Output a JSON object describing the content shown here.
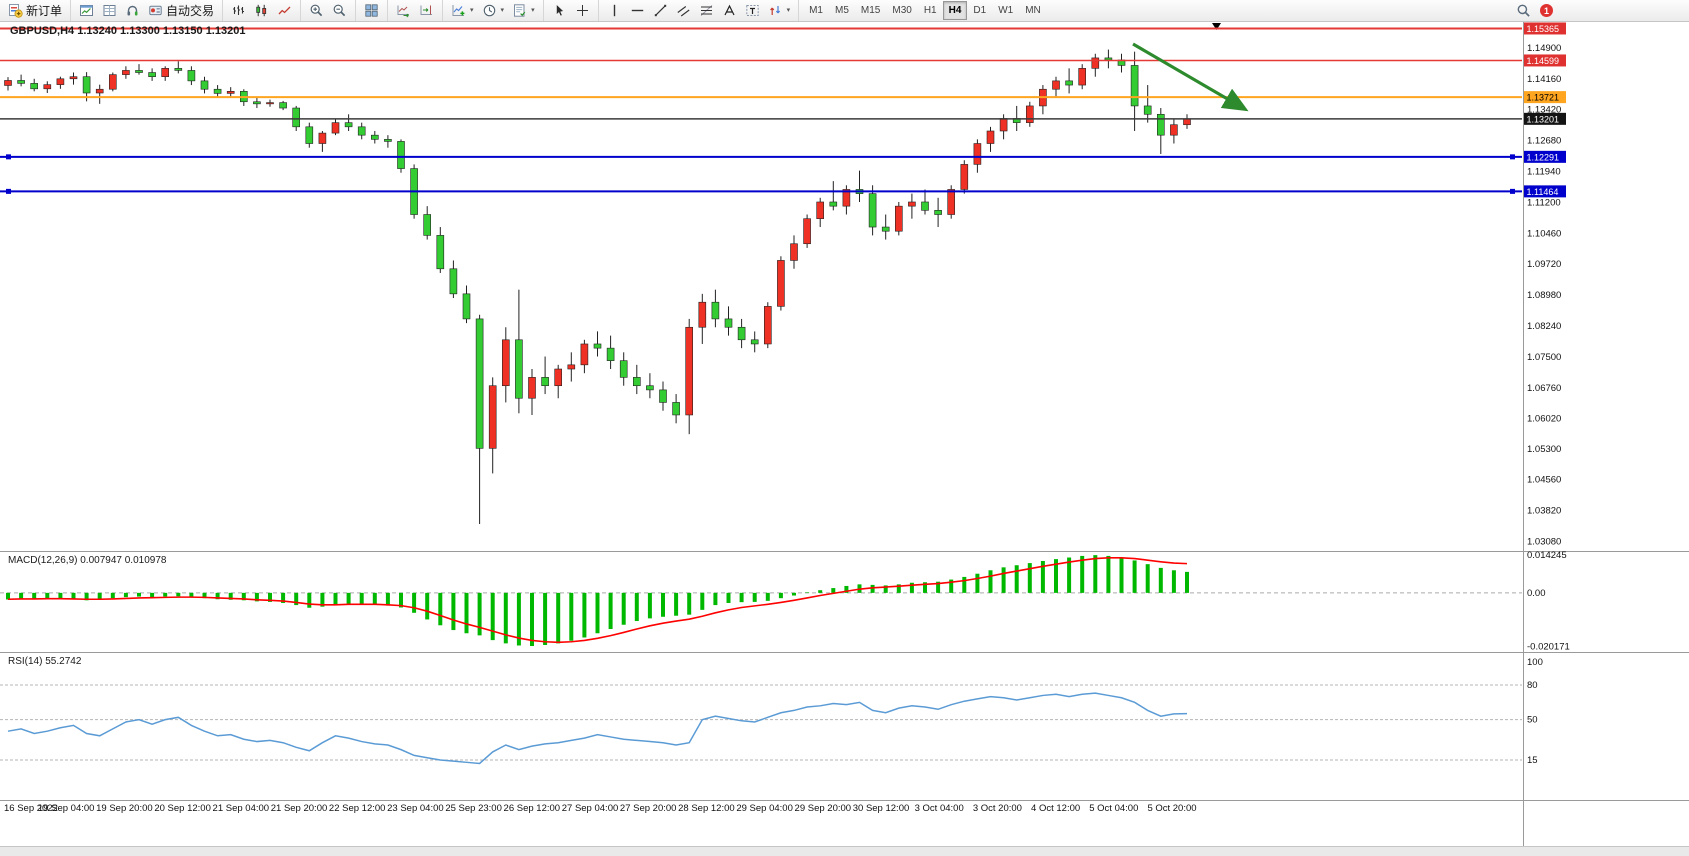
{
  "toolbar": {
    "groups": [
      {
        "items": [
          {
            "name": "new-order-button",
            "icon": "new-order",
            "label": "新订单"
          }
        ]
      },
      {
        "items": [
          {
            "name": "new-chart-button",
            "icon": "new-chart"
          },
          {
            "name": "data-window-button",
            "icon": "data-window"
          },
          {
            "name": "community-button",
            "icon": "community"
          },
          {
            "name": "autotrading-button",
            "icon": "autotrading",
            "label": "自动交易"
          }
        ]
      },
      {
        "items": [
          {
            "name": "bar-chart-type-button",
            "icon": "bars"
          },
          {
            "name": "candlestick-chart-type-button",
            "icon": "candles"
          },
          {
            "name": "line-chart-type-button",
            "icon": "line-chart"
          }
        ]
      },
      {
        "items": [
          {
            "name": "zoom-in-button",
            "icon": "zoom-in"
          },
          {
            "name": "zoom-out-button",
            "icon": "zoom-out"
          }
        ]
      },
      {
        "items": [
          {
            "name": "tile-windows-button",
            "icon": "tile"
          }
        ]
      },
      {
        "items": [
          {
            "name": "auto-scroll-button",
            "icon": "autoscroll"
          },
          {
            "name": "chart-shift-button",
            "icon": "chartshift"
          }
        ]
      },
      {
        "items": [
          {
            "name": "indicators-button",
            "icon": "indicators",
            "caret": true
          },
          {
            "name": "periods-button",
            "icon": "clock",
            "caret": true
          },
          {
            "name": "templates-button",
            "icon": "template",
            "caret": true
          }
        ]
      },
      {
        "items": [
          {
            "name": "cursor-button",
            "icon": "cursor"
          },
          {
            "name": "crosshair-button",
            "icon": "crosshair"
          }
        ]
      },
      {
        "items": [
          {
            "name": "vertical-line-button",
            "icon": "vline"
          },
          {
            "name": "horizontal-line-button",
            "icon": "hline"
          },
          {
            "name": "trendline-button",
            "icon": "trendline"
          },
          {
            "name": "equidistant-channel-button",
            "icon": "channel"
          },
          {
            "name": "fibonacci-button",
            "icon": "fibo"
          },
          {
            "name": "text-button",
            "icon": "text"
          },
          {
            "name": "text-label-button",
            "icon": "label"
          },
          {
            "name": "arrows-button",
            "icon": "arrows",
            "caret": true
          }
        ]
      }
    ],
    "timeframes": [
      "M1",
      "M5",
      "M15",
      "M30",
      "H1",
      "H4",
      "D1",
      "W1",
      "MN"
    ],
    "active_timeframe": "H4",
    "notification_badge": "1"
  },
  "chart": {
    "symbol_header": "GBPUSD,H4 1.13240 1.13300 1.13150 1.13201",
    "price_axis": [
      "1.14900",
      "1.14160",
      "1.13420",
      "1.12680",
      "1.11940",
      "1.11200",
      "1.10460",
      "1.09720",
      "1.08980",
      "1.08240",
      "1.07500",
      "1.06760",
      "1.06020",
      "1.05300",
      "1.04560",
      "1.03820",
      "1.03080"
    ],
    "time_axis": [
      "16 Sep 2022",
      "19 Sep 04:00",
      "19 Sep 20:00",
      "20 Sep 12:00",
      "21 Sep 04:00",
      "21 Sep 20:00",
      "22 Sep 12:00",
      "23 Sep 04:00",
      "25 Sep 23:00",
      "26 Sep 12:00",
      "27 Sep 04:00",
      "27 Sep 20:00",
      "28 Sep 12:00",
      "29 Sep 04:00",
      "29 Sep 20:00",
      "30 Sep 12:00",
      "3 Oct 04:00",
      "3 Oct 20:00",
      "4 Oct 12:00",
      "5 Oct 04:00",
      "5 Oct 20:00"
    ],
    "current_price": "1.13201",
    "levels": [
      {
        "price": 1.15365,
        "label": "1.15365",
        "line_color": "#e53935",
        "badge_bg": "#e03131",
        "badge_fg": "#ffffff",
        "width": 2,
        "role": "resistance-line"
      },
      {
        "price": 1.14599,
        "label": "1.14599",
        "line_color": "#e53935",
        "badge_bg": "#e03131",
        "badge_fg": "#ffffff",
        "width": 1.5,
        "role": "resistance-line"
      },
      {
        "price": 1.13721,
        "label": "1.13721",
        "line_color": "#ffa51f",
        "badge_bg": "#ffa51f",
        "badge_fg": "#000000",
        "width": 2,
        "role": "pivot-line"
      },
      {
        "price": 1.13201,
        "label": "1.13201",
        "line_color": "#3a3a3a",
        "badge_bg": "#141414",
        "badge_fg": "#ffffff",
        "width": 1.5,
        "role": "current-price-line"
      },
      {
        "price": 1.12291,
        "label": "1.12291",
        "line_color": "#0000cc",
        "badge_bg": "#0000cc",
        "badge_fg": "#ffffff",
        "width": 2,
        "handles": true,
        "role": "support-line"
      },
      {
        "price": 1.11464,
        "label": "1.11464",
        "line_color": "#0000cc",
        "badge_bg": "#0000cc",
        "badge_fg": "#ffffff",
        "width": 2,
        "handles": true,
        "role": "support-line"
      }
    ],
    "trend_arrow": {
      "color": "#2d8a2d"
    }
  },
  "indicators": {
    "macd_label": "MACD(12,26,9) 0.007947 0.010978",
    "rsi_label": "RSI(14) 55.2742",
    "macd_axis": [
      "0.014245",
      "0.00",
      "-0.020171"
    ],
    "rsi_axis": [
      "100",
      "80",
      "50",
      "15"
    ]
  },
  "chart_data": [
    {
      "type": "candlestick",
      "symbol": "GBPUSD",
      "timeframe": "H4",
      "title": "GBPUSD,H4",
      "ylim": [
        1.029,
        1.1552
      ],
      "up_color": "#ee3124",
      "down_color": "#33cc33",
      "wick_color": "#222222",
      "ohlc": [
        [
          1.14,
          1.142,
          1.1388,
          1.1412
        ],
        [
          1.1412,
          1.1426,
          1.1398,
          1.1405
        ],
        [
          1.1405,
          1.1416,
          1.1386,
          1.1392
        ],
        [
          1.1392,
          1.141,
          1.1382,
          1.1402
        ],
        [
          1.1402,
          1.1421,
          1.1392,
          1.1416
        ],
        [
          1.1416,
          1.1431,
          1.1402,
          1.1421
        ],
        [
          1.1421,
          1.1432,
          1.1362,
          1.1382
        ],
        [
          1.1382,
          1.1402,
          1.1356,
          1.1391
        ],
        [
          1.1391,
          1.1431,
          1.1386,
          1.1426
        ],
        [
          1.1426,
          1.1446,
          1.1416,
          1.1436
        ],
        [
          1.1436,
          1.1451,
          1.1426,
          1.1431
        ],
        [
          1.1431,
          1.1441,
          1.1411,
          1.1421
        ],
        [
          1.1421,
          1.1446,
          1.1411,
          1.1441
        ],
        [
          1.1441,
          1.1458,
          1.1429,
          1.1436
        ],
        [
          1.1436,
          1.1446,
          1.1401,
          1.1411
        ],
        [
          1.1411,
          1.1421,
          1.1381,
          1.1391
        ],
        [
          1.1391,
          1.1401,
          1.1371,
          1.1381
        ],
        [
          1.1381,
          1.1396,
          1.1371,
          1.1386
        ],
        [
          1.1386,
          1.1391,
          1.1351,
          1.1361
        ],
        [
          1.1361,
          1.1371,
          1.1346,
          1.1356
        ],
        [
          1.1356,
          1.1366,
          1.1349,
          1.1359
        ],
        [
          1.1359,
          1.1363,
          1.1341,
          1.1346
        ],
        [
          1.1346,
          1.1351,
          1.1291,
          1.1301
        ],
        [
          1.1301,
          1.1311,
          1.1251,
          1.1261
        ],
        [
          1.1261,
          1.1291,
          1.1241,
          1.1286
        ],
        [
          1.1286,
          1.1321,
          1.1281,
          1.1311
        ],
        [
          1.1311,
          1.1331,
          1.1291,
          1.1301
        ],
        [
          1.1301,
          1.1311,
          1.1271,
          1.1281
        ],
        [
          1.1281,
          1.1291,
          1.1261,
          1.1271
        ],
        [
          1.1271,
          1.1281,
          1.1251,
          1.1266
        ],
        [
          1.1266,
          1.1271,
          1.1191,
          1.1201
        ],
        [
          1.1201,
          1.1211,
          1.1081,
          1.1091
        ],
        [
          1.1091,
          1.1111,
          1.1031,
          1.1041
        ],
        [
          1.1041,
          1.1061,
          1.0951,
          1.0961
        ],
        [
          1.0961,
          1.0981,
          1.0891,
          1.0901
        ],
        [
          1.0901,
          1.0921,
          1.0831,
          1.0841
        ],
        [
          1.0841,
          1.0851,
          1.035,
          1.0531
        ],
        [
          1.0531,
          1.0701,
          1.0471,
          1.0681
        ],
        [
          1.0681,
          1.0821,
          1.0641,
          1.0791
        ],
        [
          1.0791,
          1.0911,
          1.0615,
          1.0651
        ],
        [
          1.0651,
          1.0721,
          1.0611,
          1.0701
        ],
        [
          1.0701,
          1.0751,
          1.0661,
          1.0681
        ],
        [
          1.0681,
          1.0731,
          1.0651,
          1.0721
        ],
        [
          1.0721,
          1.0761,
          1.0691,
          1.0731
        ],
        [
          1.0731,
          1.0791,
          1.0711,
          1.0781
        ],
        [
          1.0781,
          1.0811,
          1.0751,
          1.0771
        ],
        [
          1.0771,
          1.0801,
          1.0721,
          1.0741
        ],
        [
          1.0741,
          1.0761,
          1.0681,
          1.0701
        ],
        [
          1.0701,
          1.0731,
          1.0661,
          1.0681
        ],
        [
          1.0681,
          1.0711,
          1.0651,
          1.0671
        ],
        [
          1.0671,
          1.0691,
          1.0621,
          1.0641
        ],
        [
          1.0641,
          1.0661,
          1.0591,
          1.0611
        ],
        [
          1.0611,
          1.0841,
          1.0565,
          1.0821
        ],
        [
          1.0821,
          1.0901,
          1.0781,
          1.0881
        ],
        [
          1.0881,
          1.0911,
          1.0821,
          1.0841
        ],
        [
          1.0841,
          1.0871,
          1.0801,
          1.0821
        ],
        [
          1.0821,
          1.0841,
          1.0771,
          1.0791
        ],
        [
          1.0791,
          1.0811,
          1.0761,
          1.0781
        ],
        [
          1.0781,
          1.0881,
          1.0771,
          1.0871
        ],
        [
          1.0871,
          1.0991,
          1.0861,
          1.0981
        ],
        [
          1.0981,
          1.1041,
          1.0961,
          1.1021
        ],
        [
          1.1021,
          1.1091,
          1.1011,
          1.1081
        ],
        [
          1.1081,
          1.1131,
          1.1061,
          1.1121
        ],
        [
          1.1121,
          1.1171,
          1.1101,
          1.1111
        ],
        [
          1.1111,
          1.1161,
          1.1091,
          1.1151
        ],
        [
          1.1151,
          1.1196,
          1.1121,
          1.1141
        ],
        [
          1.1141,
          1.1161,
          1.1041,
          1.1061
        ],
        [
          1.1061,
          1.1091,
          1.1031,
          1.1051
        ],
        [
          1.1051,
          1.1121,
          1.1041,
          1.1111
        ],
        [
          1.1111,
          1.1141,
          1.1081,
          1.1121
        ],
        [
          1.1121,
          1.1151,
          1.1091,
          1.1101
        ],
        [
          1.1101,
          1.1131,
          1.1061,
          1.1091
        ],
        [
          1.1091,
          1.1161,
          1.1081,
          1.1151
        ],
        [
          1.1151,
          1.1221,
          1.1141,
          1.1211
        ],
        [
          1.1211,
          1.1271,
          1.1191,
          1.1261
        ],
        [
          1.1261,
          1.1301,
          1.1241,
          1.1291
        ],
        [
          1.1291,
          1.1331,
          1.1271,
          1.1321
        ],
        [
          1.1321,
          1.1351,
          1.1291,
          1.1311
        ],
        [
          1.1311,
          1.1361,
          1.1301,
          1.1351
        ],
        [
          1.1351,
          1.1401,
          1.1331,
          1.1391
        ],
        [
          1.1391,
          1.1421,
          1.1371,
          1.1411
        ],
        [
          1.1411,
          1.1441,
          1.1381,
          1.1401
        ],
        [
          1.1401,
          1.1451,
          1.1391,
          1.1441
        ],
        [
          1.1441,
          1.1476,
          1.1421,
          1.1466
        ],
        [
          1.1466,
          1.1486,
          1.1441,
          1.1461
        ],
        [
          1.1461,
          1.1476,
          1.1431,
          1.1448
        ],
        [
          1.1448,
          1.1481,
          1.1291,
          1.1351
        ],
        [
          1.1351,
          1.1401,
          1.1311,
          1.1331
        ],
        [
          1.1331,
          1.1346,
          1.1236,
          1.1281
        ],
        [
          1.1281,
          1.1321,
          1.1261,
          1.1306
        ],
        [
          1.1306,
          1.1331,
          1.1296,
          1.13201
        ]
      ]
    },
    {
      "type": "bar",
      "name": "MACD(12,26,9)",
      "current": "0.007947 0.010978",
      "ylim": [
        -0.0215,
        0.015
      ],
      "axis_labels": [
        "0.014245",
        "0.00",
        "-0.020171"
      ],
      "histogram_color": "#00b800",
      "signal_color": "#ff0000",
      "values": [
        -0.0025,
        -0.0022,
        -0.0024,
        -0.002,
        -0.0022,
        -0.0025,
        -0.0028,
        -0.0024,
        -0.002,
        -0.0016,
        -0.0014,
        -0.0016,
        -0.0014,
        -0.0013,
        -0.0016,
        -0.002,
        -0.0024,
        -0.0026,
        -0.0028,
        -0.0032,
        -0.0034,
        -0.0038,
        -0.0046,
        -0.0056,
        -0.0052,
        -0.0044,
        -0.004,
        -0.0042,
        -0.0044,
        -0.0048,
        -0.0055,
        -0.0075,
        -0.01,
        -0.0122,
        -0.014,
        -0.0152,
        -0.016,
        -0.0178,
        -0.019,
        -0.0198,
        -0.02,
        -0.0196,
        -0.019,
        -0.018,
        -0.0168,
        -0.0152,
        -0.0136,
        -0.012,
        -0.0106,
        -0.0096,
        -0.009,
        -0.0086,
        -0.0082,
        -0.0064,
        -0.0046,
        -0.0038,
        -0.0035,
        -0.0034,
        -0.003,
        -0.002,
        -0.001,
        0.0002,
        0.001,
        0.0018,
        0.0026,
        0.0032,
        0.003,
        0.0028,
        0.0032,
        0.0038,
        0.004,
        0.0042,
        0.005,
        0.006,
        0.0072,
        0.0085,
        0.0096,
        0.0104,
        0.0112,
        0.012,
        0.0127,
        0.0133,
        0.0139,
        0.0142,
        0.0139,
        0.0133,
        0.0122,
        0.0108,
        0.0094,
        0.0085,
        0.0079
      ],
      "signal": [
        -0.0024,
        -0.0023,
        -0.0023,
        -0.0022,
        -0.0022,
        -0.0023,
        -0.0024,
        -0.0024,
        -0.0023,
        -0.0021,
        -0.0019,
        -0.0018,
        -0.0017,
        -0.0016,
        -0.0016,
        -0.0017,
        -0.0019,
        -0.0021,
        -0.0023,
        -0.0026,
        -0.0028,
        -0.0031,
        -0.0036,
        -0.0042,
        -0.0045,
        -0.0045,
        -0.0043,
        -0.0043,
        -0.0043,
        -0.0045,
        -0.0048,
        -0.0056,
        -0.0069,
        -0.0085,
        -0.0102,
        -0.0117,
        -0.013,
        -0.0144,
        -0.0158,
        -0.017,
        -0.0179,
        -0.0184,
        -0.0186,
        -0.0184,
        -0.0179,
        -0.0171,
        -0.0161,
        -0.0149,
        -0.0136,
        -0.0124,
        -0.0114,
        -0.0106,
        -0.0099,
        -0.0088,
        -0.0075,
        -0.0064,
        -0.0055,
        -0.0049,
        -0.0043,
        -0.0036,
        -0.0028,
        -0.0019,
        -0.001,
        -0.0002,
        0.0006,
        0.0014,
        0.0019,
        0.0022,
        0.0025,
        0.0029,
        0.0032,
        0.0035,
        0.004,
        0.0046,
        0.0054,
        0.0063,
        0.0073,
        0.0082,
        0.0091,
        0.01,
        0.0108,
        0.0116,
        0.0123,
        0.0129,
        0.0132,
        0.0132,
        0.0129,
        0.0123,
        0.0117,
        0.0112,
        0.011
      ]
    },
    {
      "type": "line",
      "name": "RSI(14)",
      "current": "55.2742",
      "ylim": [
        0,
        100
      ],
      "levels": [
        80,
        50,
        15
      ],
      "color": "#5b9bd5",
      "values": [
        40,
        42,
        38,
        40,
        43,
        45,
        38,
        36,
        42,
        48,
        50,
        46,
        50,
        52,
        45,
        40,
        36,
        37,
        33,
        31,
        32,
        30,
        26,
        23,
        30,
        36,
        34,
        31,
        29,
        28,
        24,
        19,
        17,
        15,
        14,
        13,
        12,
        22,
        28,
        24,
        27,
        29,
        30,
        32,
        34,
        37,
        35,
        33,
        32,
        31,
        30,
        28,
        30,
        50,
        53,
        51,
        49,
        48,
        52,
        56,
        58,
        61,
        62,
        64,
        63,
        65,
        58,
        56,
        60,
        62,
        61,
        59,
        63,
        66,
        68,
        70,
        69,
        67,
        69,
        71,
        72,
        70,
        72,
        73,
        71,
        69,
        65,
        58,
        53,
        55,
        55.27
      ]
    }
  ]
}
